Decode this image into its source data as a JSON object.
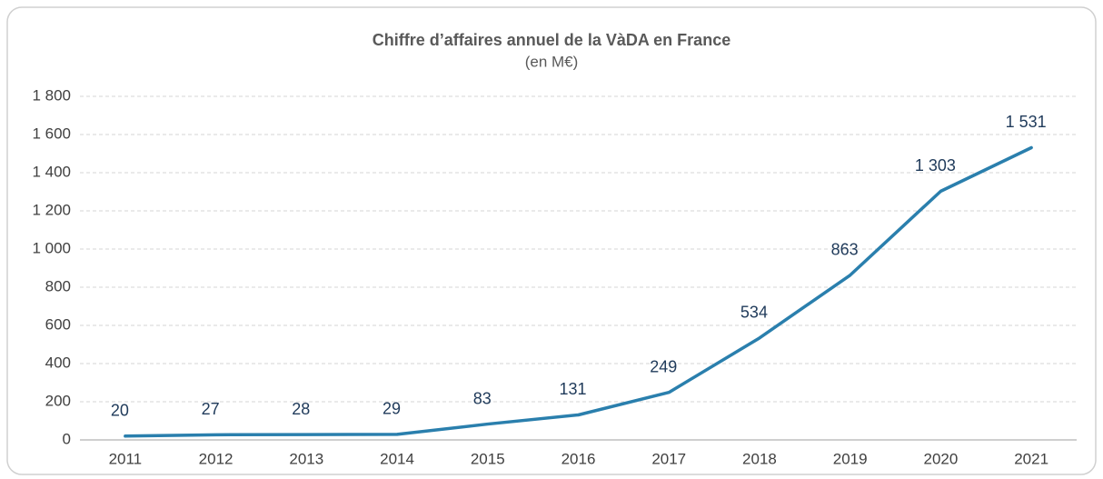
{
  "chart_data": {
    "type": "line",
    "title": "Chiffre d’affaires annuel de la VàDA en France",
    "subtitle": "(en M€)",
    "categories": [
      "2011",
      "2012",
      "2013",
      "2014",
      "2015",
      "2016",
      "2017",
      "2018",
      "2019",
      "2020",
      "2021"
    ],
    "values": [
      20,
      27,
      28,
      29,
      83,
      131,
      249,
      534,
      863,
      1303,
      1531
    ],
    "value_labels": [
      "20",
      "27",
      "28",
      "29",
      "83",
      "131",
      "249",
      "534",
      "863",
      "1 303",
      "1 531"
    ],
    "color": "#2a7fad",
    "ylim": [
      0,
      1800
    ],
    "yticks": [
      0,
      200,
      400,
      600,
      800,
      {
        "value": 1000,
        "label": "1 000"
      },
      {
        "value": 1200,
        "label": "1 200"
      },
      {
        "value": 1400,
        "label": "1 400"
      },
      {
        "value": 1600,
        "label": "1 600"
      },
      {
        "value": 1800,
        "label": "1 800"
      }
    ],
    "grid": true
  }
}
